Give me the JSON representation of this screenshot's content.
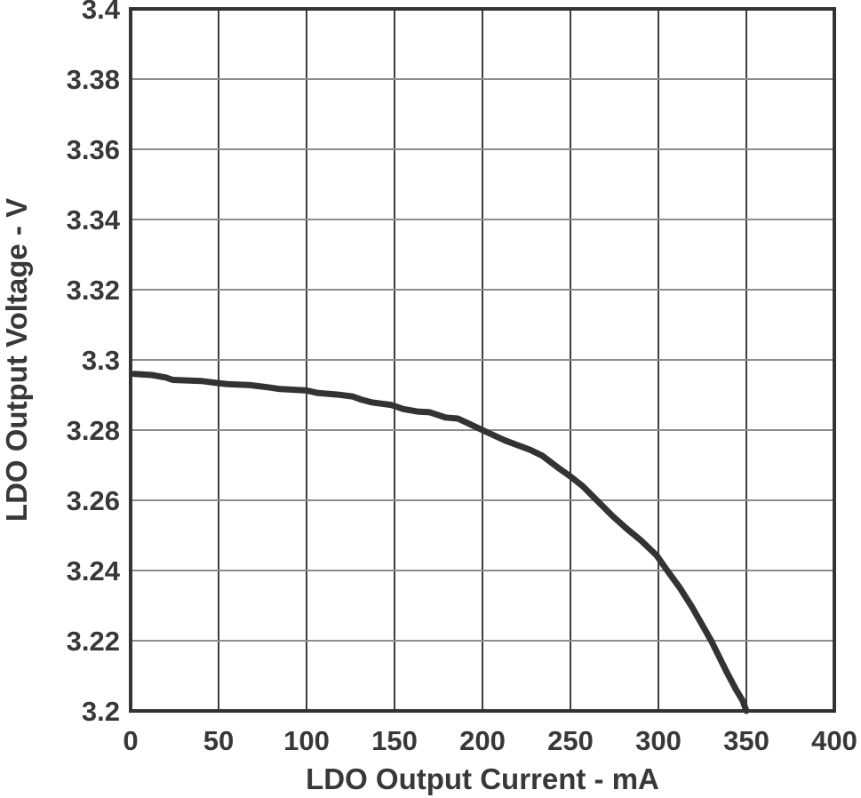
{
  "chart_data": {
    "type": "line",
    "title": "",
    "xlabel": "LDO Output Current - mA",
    "ylabel": "LDO Output Voltage - V",
    "xlim": [
      0,
      400
    ],
    "ylim": [
      3.2,
      3.4
    ],
    "xticks": [
      0,
      50,
      100,
      150,
      200,
      250,
      300,
      350,
      400
    ],
    "xtick_labels": [
      "0",
      "50",
      "100",
      "150",
      "200",
      "250",
      "300",
      "350",
      "400"
    ],
    "yticks": [
      3.4,
      3.38,
      3.36,
      3.34,
      3.32,
      3.3,
      3.28,
      3.26,
      3.24,
      3.22,
      3.2
    ],
    "ytick_labels": [
      "3.4",
      "3.38",
      "3.36",
      "3.34",
      "3.32",
      "3.3",
      "3.28",
      "3.26",
      "3.24",
      "3.22",
      "3.2"
    ],
    "grid": true,
    "legend": "none",
    "series": [
      {
        "name": "LDO output voltage",
        "points": [
          [
            2,
            3.296
          ],
          [
            12,
            3.2957
          ],
          [
            20,
            3.295
          ],
          [
            24,
            3.2943
          ],
          [
            40,
            3.294
          ],
          [
            48,
            3.2935
          ],
          [
            55,
            3.2931
          ],
          [
            68,
            3.2928
          ],
          [
            78,
            3.2922
          ],
          [
            85,
            3.2917
          ],
          [
            100,
            3.2913
          ],
          [
            106,
            3.2906
          ],
          [
            118,
            3.2901
          ],
          [
            126,
            3.2896
          ],
          [
            131,
            3.2887
          ],
          [
            137,
            3.2879
          ],
          [
            148,
            3.2872
          ],
          [
            155,
            3.286
          ],
          [
            163,
            3.2853
          ],
          [
            170,
            3.2851
          ],
          [
            179,
            3.2836
          ],
          [
            186,
            3.2833
          ],
          [
            195,
            3.2812
          ],
          [
            200,
            3.28
          ],
          [
            213,
            3.277
          ],
          [
            227,
            3.2744
          ],
          [
            234,
            3.2727
          ],
          [
            244,
            3.2689
          ],
          [
            250,
            3.2668
          ],
          [
            257,
            3.264
          ],
          [
            265,
            3.26
          ],
          [
            274,
            3.2555
          ],
          [
            282,
            3.2519
          ],
          [
            290,
            3.2486
          ],
          [
            299,
            3.2443
          ],
          [
            305,
            3.24
          ],
          [
            312,
            3.2352
          ],
          [
            319,
            3.2297
          ],
          [
            330,
            3.22
          ],
          [
            339,
            3.2109
          ],
          [
            344,
            3.2062
          ],
          [
            348,
            3.2028
          ],
          [
            350,
            3.2
          ]
        ]
      }
    ],
    "colors": {
      "curve": "#333333",
      "frame": "#333333",
      "grid_vertical": "#3d3d3d",
      "grid_horizontal": "#8c8c8c",
      "text": "#383838",
      "background": "#ffffff"
    }
  }
}
